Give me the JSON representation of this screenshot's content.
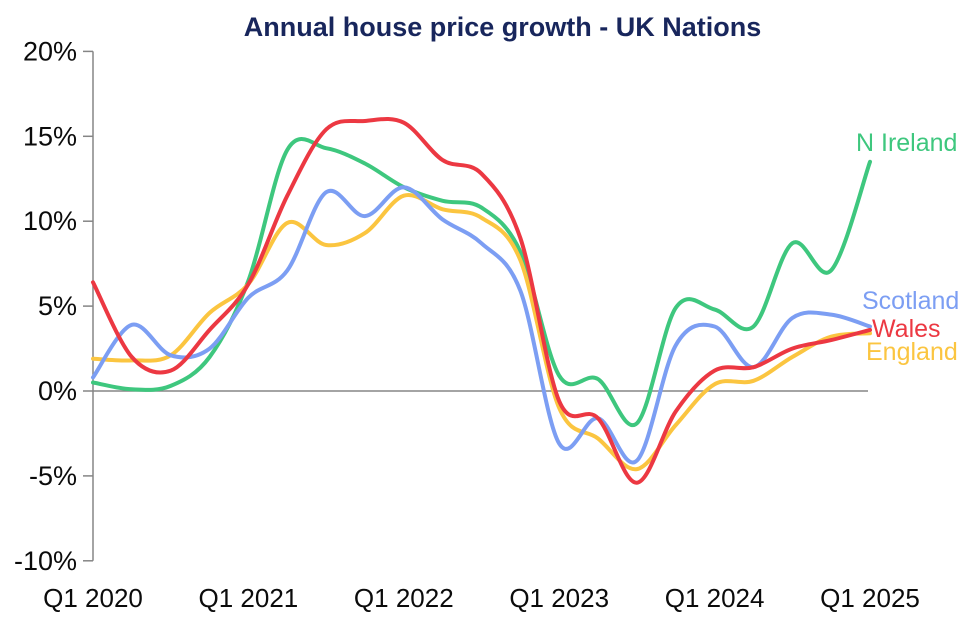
{
  "title": {
    "text": "Annual house price growth - UK Nations",
    "color": "#18265c"
  },
  "chart_data": {
    "type": "line",
    "title": "Annual house price growth - UK Nations",
    "x_quarters": [
      "Q1 2020",
      "Q2 2020",
      "Q3 2020",
      "Q4 2020",
      "Q1 2021",
      "Q2 2021",
      "Q3 2021",
      "Q4 2021",
      "Q1 2022",
      "Q2 2022",
      "Q3 2022",
      "Q4 2022",
      "Q1 2023",
      "Q2 2023",
      "Q3 2023",
      "Q4 2023",
      "Q1 2024",
      "Q2 2024",
      "Q3 2024",
      "Q4 2024",
      "Q1 2025"
    ],
    "x_tick_labels": [
      "Q1 2020",
      "Q1 2021",
      "Q1 2022",
      "Q1 2023",
      "Q1 2024",
      "Q1 2025"
    ],
    "y_ticks": [
      {
        "label": "20%",
        "value": 20
      },
      {
        "label": "15%",
        "value": 15
      },
      {
        "label": "10%",
        "value": 10
      },
      {
        "label": "5%",
        "value": 5
      },
      {
        "label": "0%",
        "value": 0
      },
      {
        "label": "-5%",
        "value": -5
      },
      {
        "label": "-10%",
        "value": -10
      }
    ],
    "ylim": [
      -10,
      20
    ],
    "unit": "percent",
    "grid": "zero-baseline-only",
    "legend_position": "right-inline-labels",
    "axis_color": "#858585",
    "tick_label_color": "#0b0b0b",
    "series": [
      {
        "name": "N Ireland",
        "color": "#3ec77e",
        "values": [
          0.5,
          0.1,
          0.3,
          2.0,
          6.5,
          14.2,
          14.3,
          13.4,
          12.0,
          11.2,
          10.8,
          8.2,
          0.9,
          0.7,
          -1.9,
          4.9,
          4.8,
          3.8,
          8.7,
          7.1,
          13.5
        ]
      },
      {
        "name": "Scotland",
        "color": "#7c9ef3",
        "values": [
          0.8,
          3.9,
          2.1,
          2.5,
          5.5,
          7.1,
          11.7,
          10.3,
          12.0,
          10.1,
          8.7,
          5.9,
          -3.1,
          -1.6,
          -4.1,
          2.7,
          3.8,
          1.4,
          4.3,
          4.5,
          3.8
        ]
      },
      {
        "name": "Wales",
        "color": "#ec3842",
        "values": [
          6.4,
          2.0,
          1.2,
          3.6,
          6.3,
          11.5,
          15.4,
          15.9,
          15.8,
          13.6,
          12.8,
          9.0,
          -0.6,
          -1.6,
          -5.4,
          -1.2,
          1.2,
          1.4,
          2.5,
          3.0,
          3.6
        ]
      },
      {
        "name": "England",
        "color": "#fbc540",
        "values": [
          1.9,
          1.8,
          2.1,
          4.6,
          6.3,
          9.9,
          8.6,
          9.3,
          11.5,
          10.7,
          10.2,
          7.7,
          -1.0,
          -2.8,
          -4.6,
          -2.0,
          0.4,
          0.6,
          2.0,
          3.2,
          3.4
        ]
      }
    ]
  }
}
